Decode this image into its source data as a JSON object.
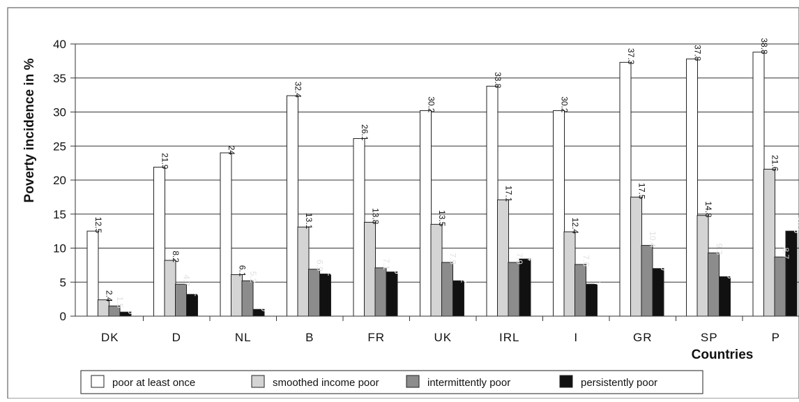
{
  "chart_data": {
    "type": "bar",
    "title": "",
    "xlabel": "Countries",
    "ylabel": "Poverty incidence in %",
    "ylim": [
      0,
      40
    ],
    "yticks": [
      0,
      5,
      10,
      15,
      20,
      25,
      30,
      35,
      40
    ],
    "grid": "horizontal",
    "legend_position": "bottom",
    "categories": [
      "DK",
      "D",
      "NL",
      "B",
      "FR",
      "UK",
      "IRL",
      "I",
      "GR",
      "SP",
      "P"
    ],
    "series": [
      {
        "name": "poor at least once",
        "color": "#ffffff",
        "values": [
          12.5,
          21.9,
          24,
          32.4,
          26.1,
          30.2,
          33.8,
          30.2,
          37.3,
          37.8,
          38.8
        ],
        "labels": [
          "12.5",
          "21.9",
          "24",
          "32.4",
          "26.1",
          "30.2",
          "33.8",
          "30.2",
          "37.3",
          "37.8",
          "38.8"
        ]
      },
      {
        "name": "smoothed income poor",
        "color": "#d4d4d4",
        "values": [
          2.4,
          8.2,
          6.1,
          13.1,
          13.8,
          13.5,
          17.1,
          12.4,
          17.5,
          14.8,
          21.6
        ],
        "labels": [
          "2.4",
          "8.2",
          "6.1",
          "13.1",
          "13.8",
          "13.5",
          "17.1",
          "12.4",
          "17.5",
          "14.8",
          "21.6"
        ]
      },
      {
        "name": "intermittently poor",
        "color": "#8c8c8c",
        "values": [
          1.5,
          4.7,
          5.2,
          6.9,
          7.1,
          7.9,
          7.9,
          7.6,
          10.4,
          9.3,
          8.7
        ],
        "labels": [
          "1.5",
          "4.7",
          "5.2",
          "6.9",
          "7.1",
          "7.9",
          "7.9",
          "7.6",
          "10.4",
          "9.3",
          "8.7"
        ]
      },
      {
        "name": "persistently poor",
        "color": "#111111",
        "values": [
          0.6,
          3.2,
          1.0,
          6.2,
          6.5,
          5.2,
          8.4,
          4.7,
          7.0,
          5.8,
          12.5
        ],
        "labels": [
          "0.6",
          "3.2",
          "1.0",
          "6.2",
          "6.5",
          "5.2",
          "8.4",
          "4.7",
          "7.0",
          "5.8",
          "12.5"
        ]
      }
    ]
  }
}
